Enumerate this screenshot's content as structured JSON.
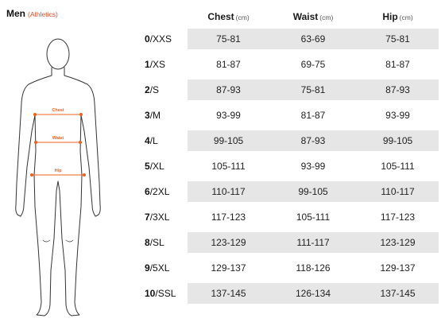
{
  "title": {
    "main": "Men",
    "sub": "(Athletics)"
  },
  "measure_labels": {
    "chest": "Chest",
    "waist": "Waist",
    "hip": "Hip"
  },
  "colors": {
    "accent": "#e8621f",
    "row_shade": "#e6e6e6",
    "subtitle": "#e24b2a"
  },
  "columns": [
    {
      "label": "Chest",
      "unit": "(cm)"
    },
    {
      "label": "Waist",
      "unit": "(cm)"
    },
    {
      "label": "Hip",
      "unit": "(cm)"
    }
  ],
  "rows": [
    {
      "num": "0",
      "size": "/XXS",
      "chest": "75-81",
      "waist": "63-69",
      "hip": "75-81"
    },
    {
      "num": "1",
      "size": "/XS",
      "chest": "81-87",
      "waist": "69-75",
      "hip": "81-87"
    },
    {
      "num": "2",
      "size": "/S",
      "chest": "87-93",
      "waist": "75-81",
      "hip": "87-93"
    },
    {
      "num": "3",
      "size": "/M",
      "chest": "93-99",
      "waist": "81-87",
      "hip": "93-99"
    },
    {
      "num": "4",
      "size": "/L",
      "chest": "99-105",
      "waist": "87-93",
      "hip": "99-105"
    },
    {
      "num": "5",
      "size": "/XL",
      "chest": "105-111",
      "waist": "93-99",
      "hip": "105-111"
    },
    {
      "num": "6",
      "size": "/2XL",
      "chest": "110-117",
      "waist": "99-105",
      "hip": "110-117"
    },
    {
      "num": "7",
      "size": "/3XL",
      "chest": "117-123",
      "waist": "105-111",
      "hip": "117-123"
    },
    {
      "num": "8",
      "size": "/SL",
      "chest": "123-129",
      "waist": "111-117",
      "hip": "123-129"
    },
    {
      "num": "9",
      "size": "/5XL",
      "chest": "129-137",
      "waist": "118-126",
      "hip": "129-137"
    },
    {
      "num": "10",
      "size": "/SSL",
      "chest": "137-145",
      "waist": "126-134",
      "hip": "137-145"
    }
  ]
}
